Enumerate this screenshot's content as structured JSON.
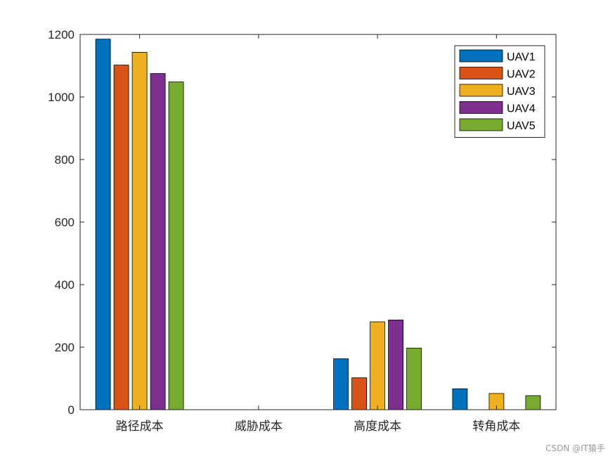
{
  "chart_data": {
    "type": "bar",
    "categories": [
      "路径成本",
      "威胁成本",
      "高度成本",
      "转角成本"
    ],
    "series": [
      {
        "name": "UAV1",
        "color": "#0072BD",
        "values": [
          1185,
          0,
          163,
          67
        ]
      },
      {
        "name": "UAV2",
        "color": "#D95319",
        "values": [
          1102,
          0,
          102,
          0
        ]
      },
      {
        "name": "UAV3",
        "color": "#EDB120",
        "values": [
          1143,
          0,
          281,
          52
        ]
      },
      {
        "name": "UAV4",
        "color": "#7E2F8E",
        "values": [
          1075,
          0,
          287,
          0
        ]
      },
      {
        "name": "UAV5",
        "color": "#77AC30",
        "values": [
          1048,
          0,
          197,
          45
        ]
      }
    ],
    "ylim": [
      0,
      1200
    ],
    "yticks": [
      0,
      200,
      400,
      600,
      800,
      1000,
      1200
    ],
    "grid": false,
    "legend_position": "top-right"
  },
  "watermark": "CSDN @IT猿手"
}
